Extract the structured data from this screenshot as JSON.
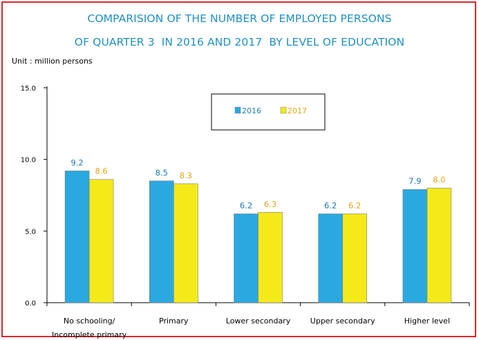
{
  "title_lines": [
    "COMPARISION OF THE NUMBER OF EMPLOYED PERSONS",
    "OF QUARTER 3  IN 2016 AND 2017  BY LEVEL OF EDUCATION"
  ],
  "unit": "Unit : million persons",
  "colors": {
    "border": "#d9262c",
    "title": "#1f8fc2"
  },
  "chart_data": {
    "type": "bar",
    "title": "COMPARISION OF THE NUMBER OF EMPLOYED PERSONS OF QUARTER 3  IN 2016 AND 2017  BY LEVEL OF EDUCATION",
    "categories": [
      [
        "No schooling/",
        "Incomplete primary"
      ],
      [
        "Primary"
      ],
      [
        "Lower secondary"
      ],
      [
        "Upper secondary"
      ],
      [
        "Higher level"
      ]
    ],
    "series": [
      {
        "name": "2016",
        "color": "#2aa9e0",
        "label_color": "#1f78b4",
        "values": [
          9.2,
          8.5,
          6.2,
          6.2,
          7.9
        ]
      },
      {
        "name": "2017",
        "color": "#f4ea1a",
        "label_color": "#e0a51b",
        "values": [
          8.6,
          8.3,
          6.3,
          6.2,
          8.0
        ]
      }
    ],
    "yticks": [
      "0.0",
      "5.0",
      "10.0",
      "15.0"
    ],
    "ylim": [
      0,
      15
    ],
    "legend_position": "top-center",
    "grid": false
  }
}
